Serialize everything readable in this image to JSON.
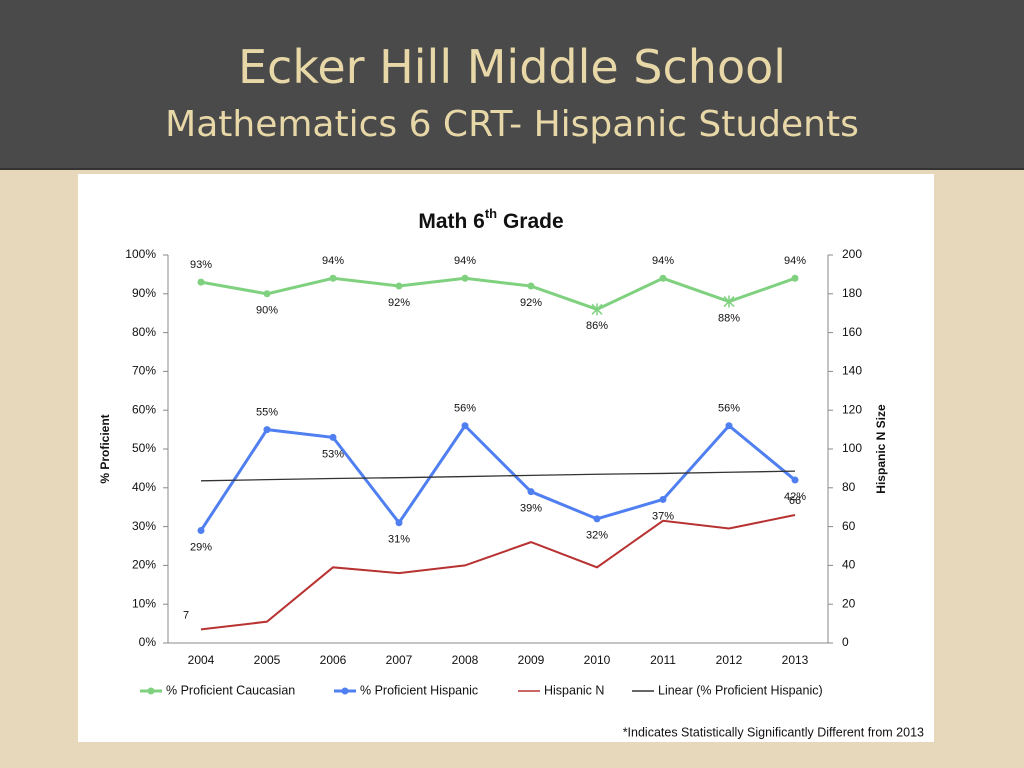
{
  "header": {
    "title": "Ecker Hill Middle School",
    "subtitle": "Mathematics 6 CRT- Hispanic Students"
  },
  "chart_data": {
    "type": "line",
    "title_parts": [
      "Math 6",
      "th",
      " Grade"
    ],
    "ylabel": "% Proficient",
    "y2label": "Hispanic N Size",
    "categories": [
      "2004",
      "2005",
      "2006",
      "2007",
      "2008",
      "2009",
      "2010",
      "2011",
      "2012",
      "2013"
    ],
    "ylim": [
      0,
      100
    ],
    "yticks": [
      {
        "value": 0,
        "label": "0%"
      },
      {
        "value": 10,
        "label": "10%"
      },
      {
        "value": 20,
        "label": "20%"
      },
      {
        "value": 30,
        "label": "30%"
      },
      {
        "value": 40,
        "label": "40%"
      },
      {
        "value": 50,
        "label": "50%"
      },
      {
        "value": 60,
        "label": "60%"
      },
      {
        "value": 70,
        "label": "70%"
      },
      {
        "value": 80,
        "label": "80%"
      },
      {
        "value": 90,
        "label": "90%"
      },
      {
        "value": 100,
        "label": "100%"
      }
    ],
    "y2lim": [
      0,
      200
    ],
    "y2ticks": [
      0,
      20,
      40,
      60,
      80,
      100,
      120,
      140,
      160,
      180,
      200
    ],
    "series": [
      {
        "name": "% Proficient Caucasian",
        "color": "#7fd17f",
        "marker": true,
        "values": [
          93,
          90,
          94,
          92,
          94,
          92,
          86,
          94,
          88,
          94
        ],
        "value_labels": [
          "93%",
          "90%",
          "94%",
          "92%",
          "94%",
          "92%",
          "86%",
          "94%",
          "88%",
          "94%"
        ],
        "markers": [
          "circle",
          "circle",
          "circle",
          "circle",
          "circle",
          "circle",
          "x",
          "circle",
          "x",
          "circle"
        ]
      },
      {
        "name": "% Proficient Hispanic",
        "color": "#4f7ff0",
        "marker": true,
        "values": [
          29,
          55,
          53,
          31,
          56,
          39,
          32,
          37,
          56,
          42
        ],
        "value_labels": [
          "29%",
          "55%",
          "53%",
          "31%",
          "56%",
          "39%",
          "32%",
          "37%",
          "56%",
          "42%"
        ]
      },
      {
        "name": "Hispanic N",
        "color": "#b83232",
        "axis": "y2",
        "marker": false,
        "values": [
          7,
          11,
          39,
          36,
          40,
          52,
          39,
          63,
          59,
          66
        ],
        "value_labels": [
          "7",
          null,
          null,
          null,
          null,
          null,
          null,
          null,
          null,
          "66"
        ]
      },
      {
        "name": "Linear (% Proficient Hispanic)",
        "color": "#333333",
        "marker": false,
        "values": [
          41.8,
          42.1,
          42.4,
          42.6,
          42.9,
          43.2,
          43.5,
          43.7,
          44.0,
          44.3
        ]
      }
    ],
    "footnote": "*Indicates Statistically Significantly Different from 2013"
  }
}
